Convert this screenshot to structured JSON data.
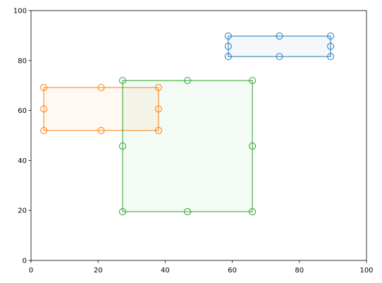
{
  "chart_data": {
    "type": "rectangle",
    "series": [
      {
        "color": "#1f77b4",
        "x": [
          58.8,
          89.3
        ],
        "y": [
          81.6,
          89.8
        ]
      },
      {
        "color": "#ff7f0e",
        "x": [
          3.8,
          38.0
        ],
        "y": [
          52.0,
          69.2
        ]
      },
      {
        "color": "#2ca02c",
        "x": [
          27.3,
          66.0
        ],
        "y": [
          19.5,
          72.0
        ]
      }
    ],
    "xlim": [
      0,
      100
    ],
    "ylim": [
      0,
      100
    ],
    "xticks": [
      0,
      20,
      40,
      60,
      80,
      100
    ],
    "yticks": [
      0,
      20,
      40,
      60,
      80,
      100
    ],
    "grid": false
  }
}
